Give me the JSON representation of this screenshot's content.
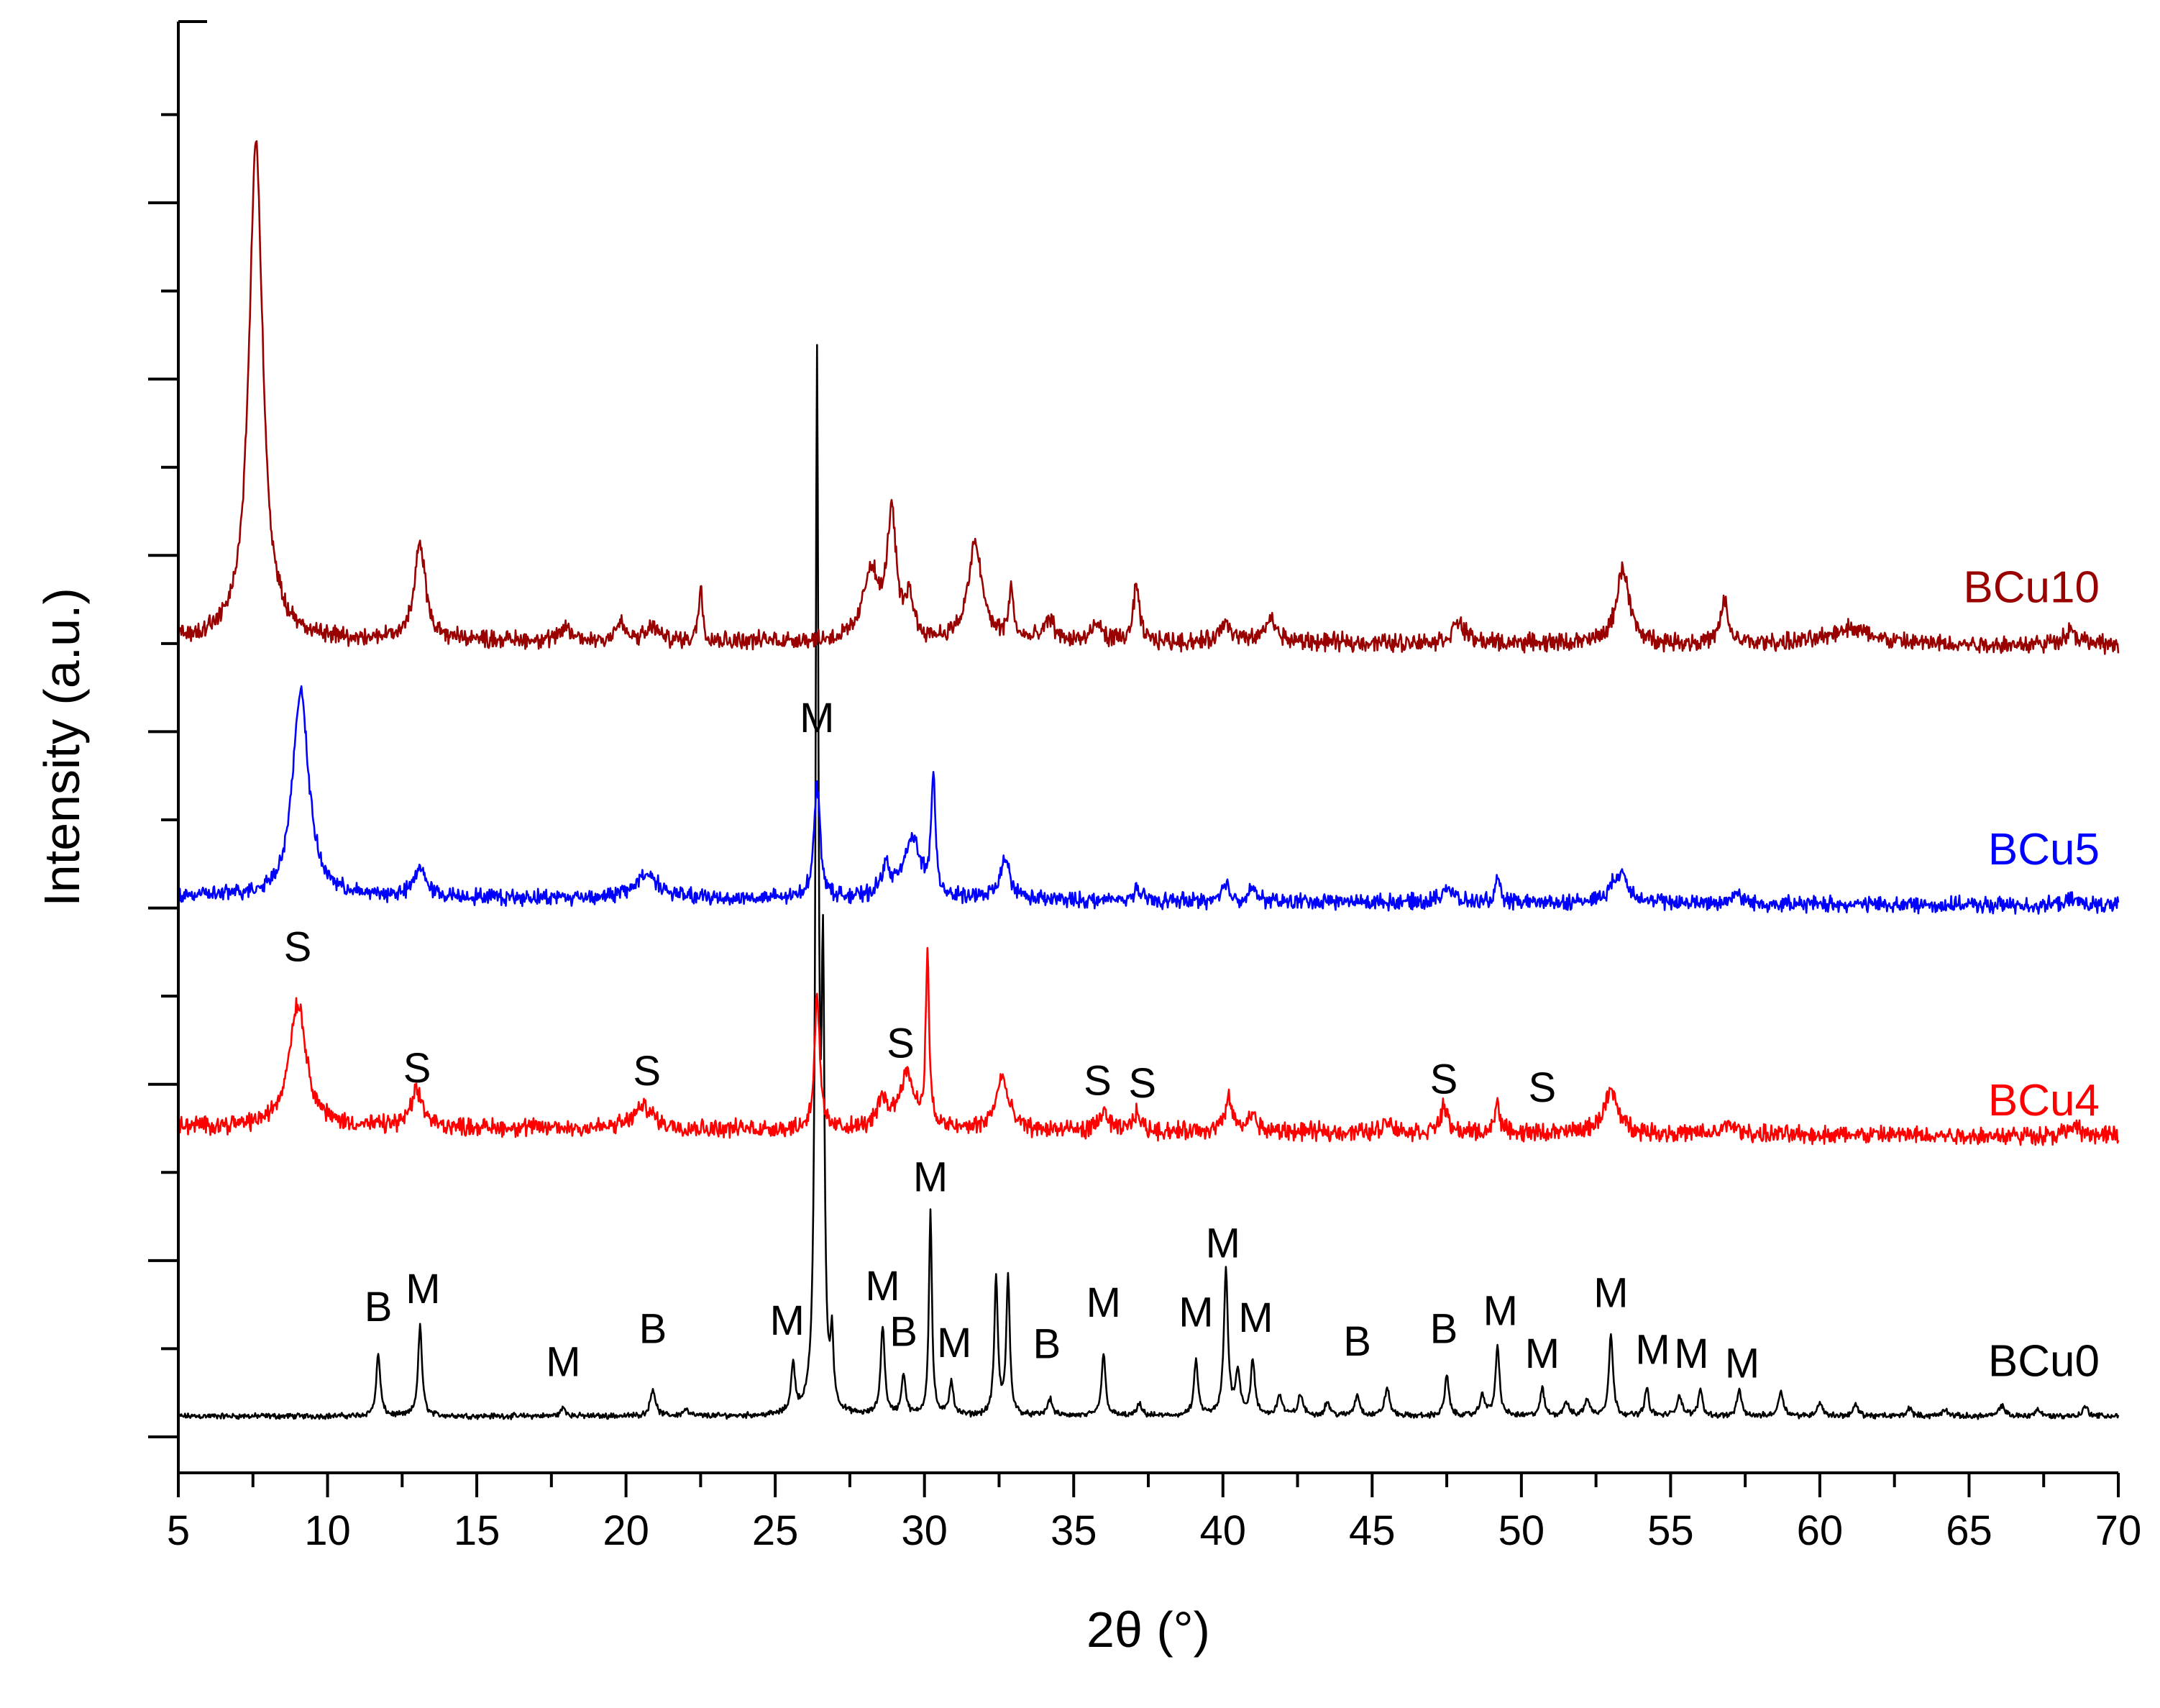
{
  "chart_data": {
    "type": "line",
    "title": "",
    "xlabel": "2θ (°)",
    "ylabel": "Intensity (a.u.)",
    "xlim": [
      5,
      70
    ],
    "ylim": [
      0,
      100
    ],
    "xticks": [
      5,
      10,
      15,
      20,
      25,
      30,
      35,
      40,
      45,
      50,
      55,
      60,
      65,
      70
    ],
    "y_tick_count": 8,
    "series": [
      {
        "name": "BCu0",
        "color": "#000000",
        "baseline": 1.5,
        "baseline_end": 1.5,
        "noise": 0.25,
        "peaks": [
          [
            11.7,
            4.5,
            0.08
          ],
          [
            13.1,
            6.5,
            0.08
          ],
          [
            17.9,
            0.6,
            0.1
          ],
          [
            20.9,
            2.0,
            0.1
          ],
          [
            22.0,
            0.5,
            0.1
          ],
          [
            25.6,
            3.5,
            0.08
          ],
          [
            26.4,
            75,
            0.06
          ],
          [
            26.6,
            30,
            0.06
          ],
          [
            26.9,
            5,
            0.06
          ],
          [
            28.6,
            6.5,
            0.08
          ],
          [
            29.3,
            3.0,
            0.08
          ],
          [
            30.2,
            15,
            0.06
          ],
          [
            30.9,
            2.5,
            0.08
          ],
          [
            32.4,
            10,
            0.07
          ],
          [
            32.8,
            10,
            0.07
          ],
          [
            34.2,
            1.2,
            0.1
          ],
          [
            36.0,
            4.5,
            0.08
          ],
          [
            37.2,
            0.8,
            0.1
          ],
          [
            39.1,
            4.0,
            0.08
          ],
          [
            40.1,
            10.5,
            0.08
          ],
          [
            40.5,
            3,
            0.1
          ],
          [
            41.0,
            4,
            0.08
          ],
          [
            41.9,
            1.5,
            0.1
          ],
          [
            42.6,
            1.5,
            0.1
          ],
          [
            43.5,
            1.0,
            0.1
          ],
          [
            44.5,
            1.5,
            0.1
          ],
          [
            45.5,
            2.0,
            0.1
          ],
          [
            47.5,
            3.0,
            0.08
          ],
          [
            48.7,
            1.5,
            0.1
          ],
          [
            49.2,
            5,
            0.08
          ],
          [
            50.7,
            2.0,
            0.08
          ],
          [
            51.5,
            1.0,
            0.1
          ],
          [
            52.2,
            1.2,
            0.1
          ],
          [
            53.0,
            6,
            0.08
          ],
          [
            54.2,
            2.0,
            0.08
          ],
          [
            55.3,
            1.5,
            0.1
          ],
          [
            56.0,
            2.0,
            0.08
          ],
          [
            57.3,
            2.0,
            0.08
          ],
          [
            58.7,
            1.8,
            0.1
          ],
          [
            60.0,
            1.0,
            0.1
          ],
          [
            61.2,
            0.8,
            0.1
          ],
          [
            63.0,
            0.6,
            0.1
          ],
          [
            64.2,
            0.5,
            0.1
          ],
          [
            66.1,
            0.8,
            0.1
          ],
          [
            67.3,
            0.5,
            0.1
          ],
          [
            68.9,
            0.7,
            0.1
          ]
        ]
      },
      {
        "name": "BCu4",
        "color": "#ff0000",
        "baseline": 22.5,
        "baseline_end": 21.8,
        "noise": 0.8,
        "peaks": [
          [
            9.0,
            9,
            0.35
          ],
          [
            13.0,
            2.5,
            0.25
          ],
          [
            20.6,
            1.6,
            0.4
          ],
          [
            26.4,
            10,
            0.1
          ],
          [
            28.6,
            2,
            0.2
          ],
          [
            29.4,
            4,
            0.3
          ],
          [
            30.1,
            12,
            0.07
          ],
          [
            32.6,
            3.8,
            0.25
          ],
          [
            36.0,
            1.5,
            0.15
          ],
          [
            37.1,
            1.3,
            0.15
          ],
          [
            40.2,
            2.3,
            0.15
          ],
          [
            41.0,
            1.3,
            0.15
          ],
          [
            45.5,
            0.8,
            0.2
          ],
          [
            47.4,
            1.8,
            0.15
          ],
          [
            49.2,
            2.2,
            0.1
          ],
          [
            53.0,
            3.0,
            0.3
          ],
          [
            57.0,
            0.8,
            0.2
          ],
          [
            68.5,
            0.6,
            0.3
          ]
        ]
      },
      {
        "name": "BCu5",
        "color": "#0000ff",
        "baseline": 39.2,
        "baseline_end": 38.5,
        "noise": 0.7,
        "peaks": [
          [
            9.1,
            15,
            0.32
          ],
          [
            13.1,
            2.2,
            0.22
          ],
          [
            20.7,
            1.8,
            0.45
          ],
          [
            26.4,
            8.2,
            0.13
          ],
          [
            28.7,
            2,
            0.2
          ],
          [
            29.6,
            4.3,
            0.35
          ],
          [
            30.3,
            8.5,
            0.08
          ],
          [
            32.7,
            2.8,
            0.22
          ],
          [
            37.1,
            0.8,
            0.15
          ],
          [
            40.1,
            1.2,
            0.15
          ],
          [
            41.0,
            0.9,
            0.15
          ],
          [
            47.5,
            1.2,
            0.2
          ],
          [
            49.2,
            1.5,
            0.1
          ],
          [
            53.3,
            2.2,
            0.35
          ],
          [
            57.2,
            0.8,
            0.2
          ],
          [
            68.5,
            0.4,
            0.3
          ]
        ]
      },
      {
        "name": "BCu10",
        "color": "#990000",
        "baseline": 57.8,
        "baseline_end": 57.4,
        "noise": 0.8,
        "peaks": [
          [
            7.6,
            36,
            0.28
          ],
          [
            13.1,
            7,
            0.22
          ],
          [
            18.0,
            1.0,
            0.15
          ],
          [
            19.8,
            1.2,
            0.2
          ],
          [
            20.9,
            1.0,
            0.2
          ],
          [
            22.5,
            4,
            0.08
          ],
          [
            28.2,
            5,
            0.3
          ],
          [
            28.9,
            9,
            0.18
          ],
          [
            29.5,
            3,
            0.15
          ],
          [
            31.7,
            7,
            0.28
          ],
          [
            32.9,
            3.5,
            0.1
          ],
          [
            34.2,
            1.5,
            0.2
          ],
          [
            35.8,
            1.2,
            0.2
          ],
          [
            37.1,
            4,
            0.12
          ],
          [
            40.1,
            1.5,
            0.2
          ],
          [
            41.6,
            1.6,
            0.25
          ],
          [
            47.9,
            1.5,
            0.25
          ],
          [
            53.4,
            5.5,
            0.25
          ],
          [
            56.8,
            3,
            0.15
          ],
          [
            61.0,
            1.2,
            0.8
          ],
          [
            68.4,
            1.0,
            0.3
          ]
        ]
      }
    ],
    "series_labels": [
      {
        "text": "BCu10",
        "color": "#990000",
        "anchor_y": 60.5
      },
      {
        "text": "BCu5",
        "color": "#0000ff",
        "anchor_y": 41.5
      },
      {
        "text": "BCu4",
        "color": "#ff0000",
        "anchor_y": 23.3
      },
      {
        "text": "BCu0",
        "color": "#000000",
        "anchor_y": 4.4
      }
    ],
    "annotations": [
      {
        "text": "M",
        "x": 26.4,
        "y": 51.1
      },
      {
        "text": "S",
        "x": 9.0,
        "y": 34.5
      },
      {
        "text": "S",
        "x": 13.0,
        "y": 25.7
      },
      {
        "text": "S",
        "x": 20.7,
        "y": 25.5
      },
      {
        "text": "S",
        "x": 29.2,
        "y": 27.5
      },
      {
        "text": "S",
        "x": 35.8,
        "y": 24.8
      },
      {
        "text": "S",
        "x": 37.3,
        "y": 24.6
      },
      {
        "text": "S",
        "x": 47.4,
        "y": 24.9
      },
      {
        "text": "S",
        "x": 50.7,
        "y": 24.3
      },
      {
        "text": "M",
        "x": 30.2,
        "y": 17.8
      },
      {
        "text": "M",
        "x": 40.0,
        "y": 13.0
      },
      {
        "text": "M",
        "x": 28.6,
        "y": 9.9
      },
      {
        "text": "M",
        "x": 13.2,
        "y": 9.7
      },
      {
        "text": "B",
        "x": 11.7,
        "y": 8.4
      },
      {
        "text": "M",
        "x": 36.0,
        "y": 8.7
      },
      {
        "text": "M",
        "x": 53.0,
        "y": 9.4
      },
      {
        "text": "M",
        "x": 39.1,
        "y": 8.0
      },
      {
        "text": "M",
        "x": 41.1,
        "y": 7.6
      },
      {
        "text": "M",
        "x": 49.3,
        "y": 8.1
      },
      {
        "text": "M",
        "x": 25.4,
        "y": 7.4
      },
      {
        "text": "B",
        "x": 29.3,
        "y": 6.6
      },
      {
        "text": "M",
        "x": 31.0,
        "y": 5.8
      },
      {
        "text": "B",
        "x": 20.9,
        "y": 6.8
      },
      {
        "text": "B",
        "x": 34.1,
        "y": 5.7
      },
      {
        "text": "B",
        "x": 44.5,
        "y": 5.9
      },
      {
        "text": "B",
        "x": 47.4,
        "y": 6.8
      },
      {
        "text": "M",
        "x": 17.9,
        "y": 4.4
      },
      {
        "text": "M",
        "x": 50.7,
        "y": 5.0
      },
      {
        "text": "M",
        "x": 54.4,
        "y": 5.3
      },
      {
        "text": "M",
        "x": 55.7,
        "y": 5.0
      },
      {
        "text": "M",
        "x": 57.4,
        "y": 4.3
      }
    ]
  }
}
